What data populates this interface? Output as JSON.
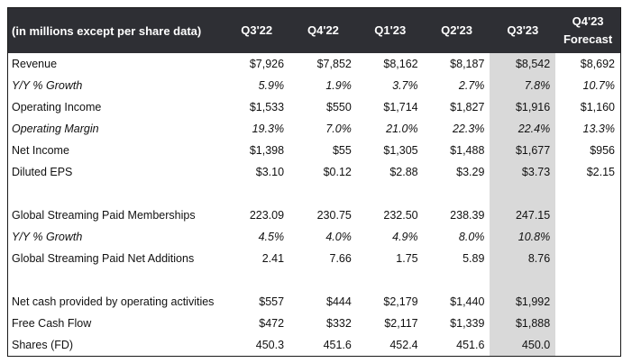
{
  "header": {
    "label": "(in millions except per share data)",
    "columns": [
      "Q3'22",
      "Q4'22",
      "Q1'23",
      "Q2'23",
      "Q3'23",
      "Q4'23"
    ],
    "forecast_sub": "Forecast"
  },
  "rows": [
    {
      "label": "Revenue",
      "italic": false,
      "values": [
        "$7,926",
        "$7,852",
        "$8,162",
        "$8,187",
        "$8,542",
        "$8,692"
      ]
    },
    {
      "label": "Y/Y % Growth",
      "italic": true,
      "values": [
        "5.9%",
        "1.9%",
        "3.7%",
        "2.7%",
        "7.8%",
        "10.7%"
      ]
    },
    {
      "label": "Operating Income",
      "italic": false,
      "values": [
        "$1,533",
        "$550",
        "$1,714",
        "$1,827",
        "$1,916",
        "$1,160"
      ]
    },
    {
      "label": "Operating Margin",
      "italic": true,
      "values": [
        "19.3%",
        "7.0%",
        "21.0%",
        "22.3%",
        "22.4%",
        "13.3%"
      ]
    },
    {
      "label": "Net Income",
      "italic": false,
      "values": [
        "$1,398",
        "$55",
        "$1,305",
        "$1,488",
        "$1,677",
        "$956"
      ]
    },
    {
      "label": "Diluted EPS",
      "italic": false,
      "values": [
        "$3.10",
        "$0.12",
        "$2.88",
        "$3.29",
        "$3.73",
        "$2.15"
      ]
    },
    {
      "gap": true
    },
    {
      "label": "Global Streaming Paid Memberships",
      "italic": false,
      "values": [
        "223.09",
        "230.75",
        "232.50",
        "238.39",
        "247.15",
        ""
      ]
    },
    {
      "label": "Y/Y % Growth",
      "italic": true,
      "values": [
        "4.5%",
        "4.0%",
        "4.9%",
        "8.0%",
        "10.8%",
        ""
      ]
    },
    {
      "label": "Global Streaming Paid Net Additions",
      "italic": false,
      "values": [
        "2.41",
        "7.66",
        "1.75",
        "5.89",
        "8.76",
        ""
      ]
    },
    {
      "gap": true
    },
    {
      "label": "Net cash provided by operating activities",
      "italic": false,
      "values": [
        "$557",
        "$444",
        "$2,179",
        "$1,440",
        "$1,992",
        ""
      ]
    },
    {
      "label": "Free Cash Flow",
      "italic": false,
      "values": [
        "$472",
        "$332",
        "$2,117",
        "$1,339",
        "$1,888",
        ""
      ]
    },
    {
      "label": "Shares (FD)",
      "italic": false,
      "values": [
        "450.3",
        "451.6",
        "452.4",
        "451.6",
        "450.0",
        ""
      ]
    }
  ],
  "colors": {
    "header_bg": "#2e2f34",
    "shade": "#d9d9d9"
  }
}
